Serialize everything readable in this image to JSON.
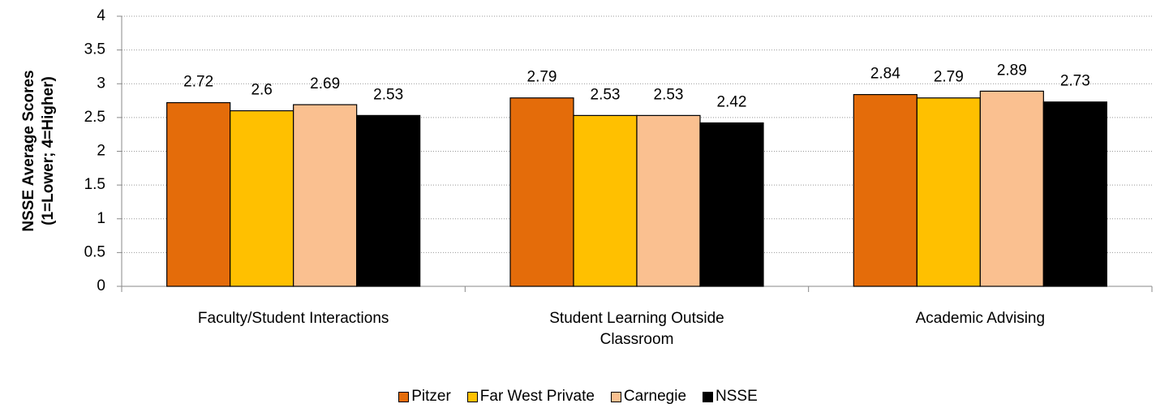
{
  "chart_data": {
    "type": "bar",
    "ylabel": [
      "NSSE Average Scores",
      "(1=Lower; 4=Higher)"
    ],
    "categories": [
      "Faculty/Student Interactions",
      "Student Learning Outside Classroom",
      "Academic Advising"
    ],
    "series": [
      {
        "name": "Pitzer",
        "color": "#E46C0A",
        "values": [
          2.72,
          2.79,
          2.84
        ]
      },
      {
        "name": "Far West Private",
        "color": "#FFC000",
        "values": [
          2.6,
          2.53,
          2.79
        ]
      },
      {
        "name": "Carnegie",
        "color": "#FAC090",
        "values": [
          2.69,
          2.53,
          2.89
        ]
      },
      {
        "name": "NSSE",
        "color": "#000000",
        "values": [
          2.53,
          2.42,
          2.73
        ]
      }
    ],
    "ylim": [
      0,
      4
    ],
    "yticks": [
      0,
      0.5,
      1,
      1.5,
      2,
      2.5,
      3,
      3.5,
      4
    ],
    "grid": true,
    "legend": "bottom"
  }
}
